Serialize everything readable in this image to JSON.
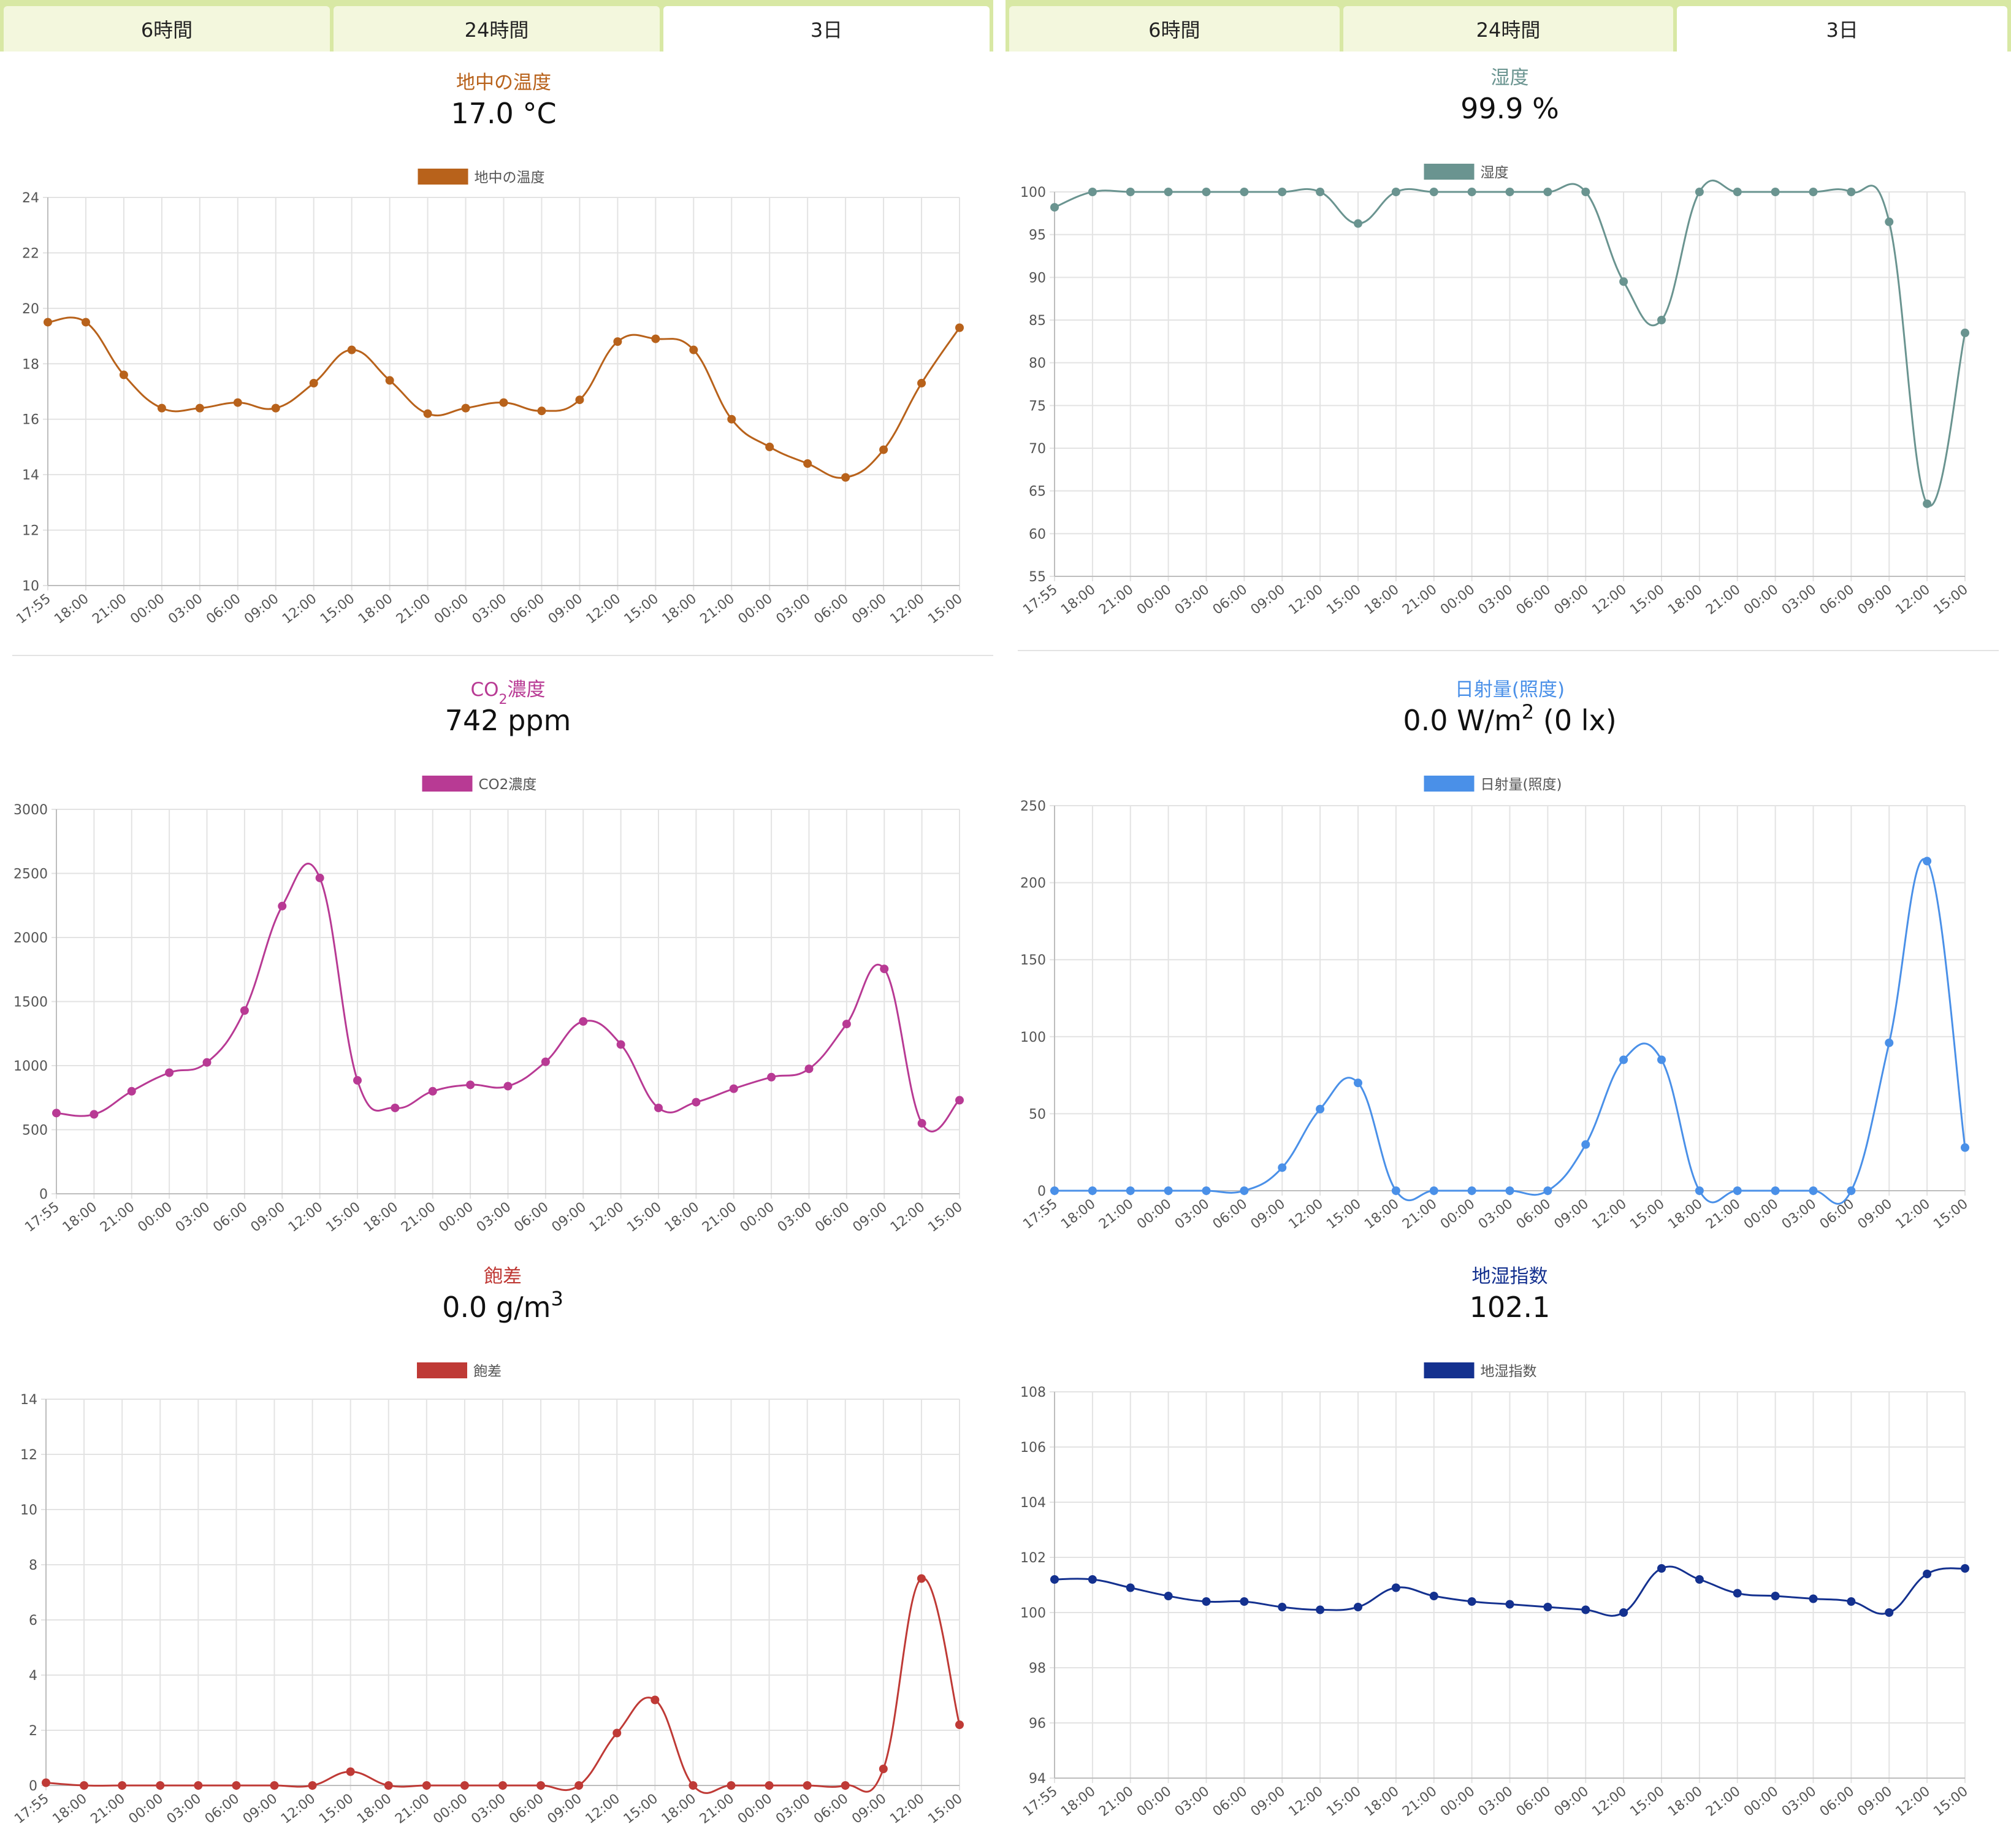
{
  "tabs": {
    "left": [
      "6時間",
      "24時間",
      "3日"
    ],
    "right": [
      "6時間",
      "24時間",
      "3日"
    ],
    "active_index": 2
  },
  "x_labels": [
    "17:55",
    "18:00",
    "21:00",
    "00:00",
    "03:00",
    "06:00",
    "09:00",
    "12:00",
    "15:00",
    "18:00",
    "21:00",
    "00:00",
    "03:00",
    "06:00",
    "09:00",
    "12:00",
    "15:00",
    "18:00",
    "21:00",
    "00:00",
    "03:00",
    "06:00",
    "09:00",
    "12:00",
    "15:00"
  ],
  "panels": [
    {
      "key": "soil_temp",
      "title": "地中の温度",
      "value": "17.0 °C",
      "color": "#b8621b"
    },
    {
      "key": "humidity",
      "title": "湿度",
      "value": "99.9 %",
      "color": "#6a9490"
    },
    {
      "key": "co2",
      "title": "CO",
      "title_sub": "2",
      "title_tail": "濃度",
      "value": "742 ppm",
      "color": "#b83a94"
    },
    {
      "key": "solar",
      "title": "日射量(照度)",
      "value_main": "0.0 W/m",
      "value_sup": "2",
      "value_tail": " (0 lx)",
      "color": "#4a90e8"
    },
    {
      "key": "vpd",
      "title": "飽差",
      "value_main": "0.0 g/m",
      "value_sup": "3",
      "color": "#bf3a36"
    },
    {
      "key": "soil_moisture",
      "title": "地湿指数",
      "value": "102.1",
      "color": "#14318f"
    }
  ],
  "chart_data": [
    {
      "type": "line",
      "title": "地中の温度",
      "series": [
        {
          "name": "地中の温度",
          "values": [
            19.5,
            19.5,
            17.6,
            16.4,
            16.4,
            16.6,
            16.4,
            17.3,
            18.5,
            17.4,
            16.2,
            16.4,
            16.6,
            16.3,
            16.7,
            18.8,
            18.9,
            18.5,
            16.0,
            15.0,
            14.4,
            13.9,
            14.9,
            17.3,
            19.3
          ]
        }
      ],
      "ylim": [
        10,
        24
      ],
      "yticks": [
        10,
        12,
        14,
        16,
        18,
        20,
        22,
        24
      ],
      "grid": true,
      "legend": "top"
    },
    {
      "type": "line",
      "title": "湿度",
      "series": [
        {
          "name": "湿度",
          "values": [
            98.2,
            100,
            100,
            100,
            100,
            100,
            100,
            100,
            96.3,
            100,
            100,
            100,
            100,
            100,
            100,
            89.5,
            85.0,
            100,
            100,
            100,
            100,
            100,
            96.5,
            63.5,
            83.5
          ]
        }
      ],
      "ylim": [
        55,
        100
      ],
      "yticks": [
        55,
        60,
        65,
        70,
        75,
        80,
        85,
        90,
        95,
        100
      ],
      "grid": true,
      "legend": "top"
    },
    {
      "type": "line",
      "title": "CO2濃度",
      "series": [
        {
          "name": "CO2濃度",
          "values": [
            630,
            620,
            800,
            945,
            1025,
            1430,
            2245,
            2465,
            885,
            670,
            800,
            850,
            840,
            1030,
            1345,
            1165,
            670,
            715,
            820,
            910,
            975,
            1325,
            1755,
            550,
            730
          ]
        }
      ],
      "ylim": [
        0,
        3000
      ],
      "yticks": [
        0,
        500,
        1000,
        1500,
        2000,
        2500,
        3000
      ],
      "grid": true,
      "legend": "top"
    },
    {
      "type": "line",
      "title": "日射量(照度)",
      "series": [
        {
          "name": "日射量(照度)",
          "values": [
            0,
            0,
            0,
            0,
            0,
            0,
            15,
            53,
            70,
            0,
            0,
            0,
            0,
            0,
            30,
            85,
            85,
            0,
            0,
            0,
            0,
            0,
            96,
            214,
            28
          ]
        }
      ],
      "ylim": [
        0,
        250
      ],
      "yticks": [
        0,
        50,
        100,
        150,
        200,
        250
      ],
      "grid": true,
      "legend": "top"
    },
    {
      "type": "line",
      "title": "飽差",
      "series": [
        {
          "name": "飽差",
          "values": [
            0.1,
            0,
            0,
            0,
            0,
            0,
            0,
            0,
            0.5,
            0,
            0,
            0,
            0,
            0,
            0,
            1.9,
            3.1,
            0,
            0,
            0,
            0,
            0,
            0.6,
            7.5,
            2.2
          ]
        }
      ],
      "ylim": [
        0,
        14
      ],
      "yticks": [
        0,
        2,
        4,
        6,
        8,
        10,
        12,
        14
      ],
      "grid": true,
      "legend": "top"
    },
    {
      "type": "line",
      "title": "地湿指数",
      "series": [
        {
          "name": "地湿指数",
          "values": [
            101.2,
            101.2,
            100.9,
            100.6,
            100.4,
            100.4,
            100.2,
            100.1,
            100.2,
            100.9,
            100.6,
            100.4,
            100.3,
            100.2,
            100.1,
            100.0,
            101.6,
            101.2,
            100.7,
            100.6,
            100.5,
            100.4,
            100.0,
            101.4,
            101.6
          ]
        }
      ],
      "ylim": [
        94,
        108
      ],
      "yticks": [
        94,
        96,
        98,
        100,
        102,
        104,
        106,
        108
      ],
      "grid": true,
      "legend": "top"
    }
  ]
}
